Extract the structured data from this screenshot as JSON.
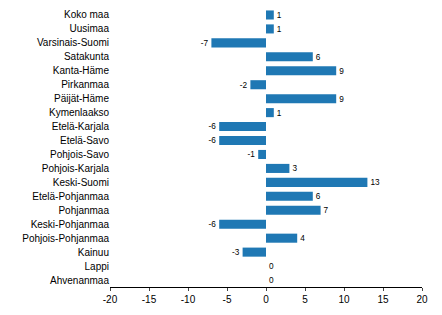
{
  "chart_data": {
    "type": "bar",
    "orientation": "horizontal",
    "categories": [
      "Koko maa",
      "Uusimaa",
      "Varsinais-Suomi",
      "Satakunta",
      "Kanta-Häme",
      "Pirkanmaa",
      "Päijät-Häme",
      "Kymenlaakso",
      "Etelä-Karjala",
      "Etelä-Savo",
      "Pohjois-Savo",
      "Pohjois-Karjala",
      "Keski-Suomi",
      "Etelä-Pohjanmaa",
      "Pohjanmaa",
      "Keski-Pohjanmaa",
      "Pohjois-Pohjanmaa",
      "Kainuu",
      "Lappi",
      "Ahvenanmaa"
    ],
    "values": [
      1,
      1,
      -7,
      6,
      9,
      -2,
      9,
      1,
      -6,
      -6,
      -1,
      3,
      13,
      6,
      7,
      -6,
      4,
      -3,
      0,
      0
    ],
    "color": "#1f78b4",
    "xlim": [
      -20,
      20
    ],
    "xticks": [
      -20,
      -15,
      -10,
      -5,
      0,
      5,
      10,
      15,
      20
    ],
    "grid": false,
    "data_labels": true
  }
}
